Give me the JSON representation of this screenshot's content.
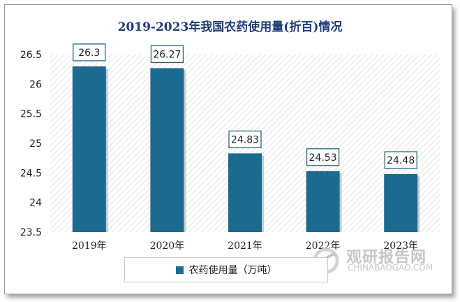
{
  "chart_data": {
    "type": "bar",
    "title": "2019-2023年我国农药使用量(折百)情况",
    "categories": [
      "2019年",
      "2020年",
      "2021年",
      "2022年",
      "2023年"
    ],
    "series": [
      {
        "name": "农药使用量（万吨）",
        "values": [
          26.3,
          26.27,
          24.83,
          24.53,
          24.48
        ]
      }
    ],
    "value_labels": [
      "26.3",
      "26.27",
      "24.83",
      "24.53",
      "24.48"
    ],
    "ylim": [
      23.5,
      26.5
    ],
    "yticks": [
      23.5,
      24,
      24.5,
      25,
      25.5,
      26,
      26.5
    ],
    "ytick_labels": [
      "23.5",
      "24",
      "24.5",
      "25",
      "25.5",
      "26",
      "26.5"
    ],
    "xlabel": "",
    "ylabel": "",
    "grid": false,
    "plot_background": "diagonal-hatch",
    "legend_position": "bottom",
    "bar_color": "#1b6a90"
  },
  "legend": {
    "label": "农药使用量（万吨）"
  },
  "watermark": {
    "name_cn": "观研报告网",
    "domain": "CHINABAOGAO.COM"
  }
}
